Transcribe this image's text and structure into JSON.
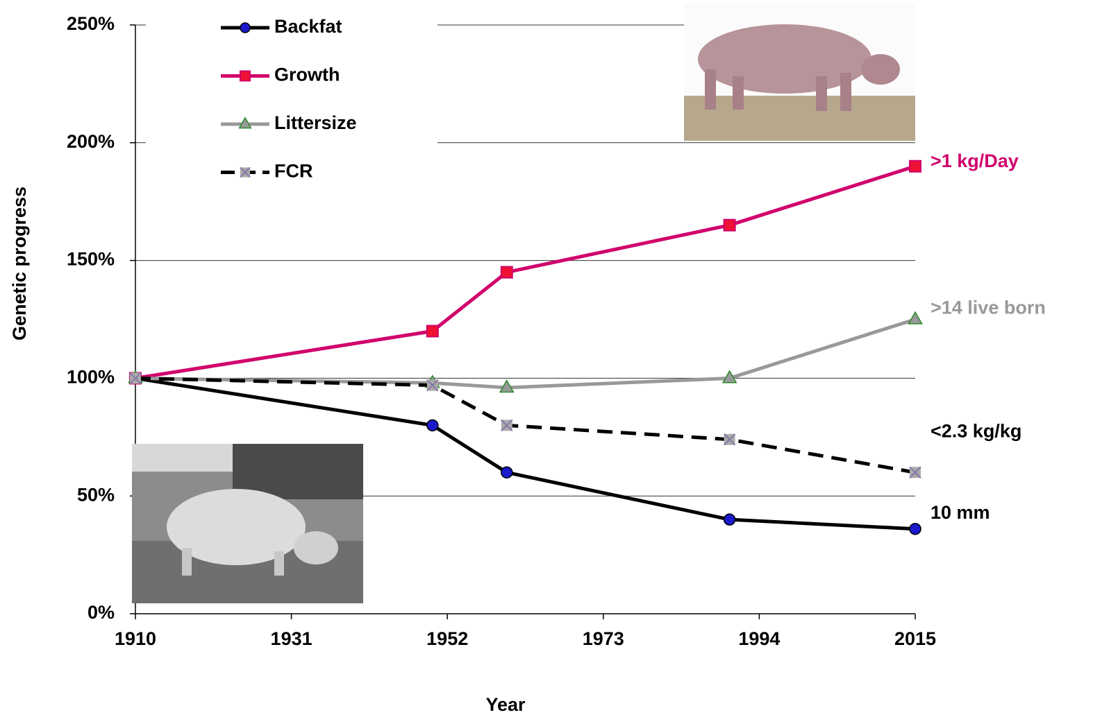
{
  "chart_data": {
    "type": "line",
    "x_label": "Year",
    "y_label": "Genetic progress",
    "x": [
      1910,
      1950,
      1960,
      1990,
      2015
    ],
    "xlim": [
      1910,
      2015
    ],
    "xticks": [
      1910,
      1931,
      1952,
      1973,
      1994,
      2015
    ],
    "ylim": [
      0,
      250
    ],
    "yticks": [
      {
        "value": 0,
        "label": "0%"
      },
      {
        "value": 50,
        "label": "50%"
      },
      {
        "value": 100,
        "label": "100%"
      },
      {
        "value": 150,
        "label": "150%"
      },
      {
        "value": 200,
        "label": "200%"
      },
      {
        "value": 250,
        "label": "250%"
      }
    ],
    "grid": true,
    "legend": "upper left",
    "series": [
      {
        "name": "Backfat",
        "color": "#000000",
        "marker": "circle",
        "marker_color": "#1a1acc",
        "dashed": false,
        "values": [
          100,
          80,
          60,
          40,
          36
        ],
        "end_label": "10 mm",
        "end_label_color": "#000000"
      },
      {
        "name": "Growth",
        "color": "#d1006b",
        "marker": "square",
        "marker_color": "#ee1133",
        "dashed": false,
        "values": [
          100,
          120,
          145,
          165,
          190
        ],
        "end_label": ">1 kg/Day",
        "end_label_color": "#d1006b"
      },
      {
        "name": "Littersize",
        "color": "#999999",
        "marker": "triangle",
        "marker_color": "#2a8a2a",
        "dashed": false,
        "values": [
          100,
          98,
          96,
          100,
          125
        ],
        "end_label": ">14  live born",
        "end_label_color": "#999999"
      },
      {
        "name": "FCR",
        "color": "#000000",
        "marker": "xsquare",
        "marker_color": "#8877aa",
        "dashed": true,
        "values": [
          100,
          97,
          80,
          74,
          60
        ],
        "end_label": "<2.3 kg/kg",
        "end_label_color": "#000000"
      }
    ]
  }
}
